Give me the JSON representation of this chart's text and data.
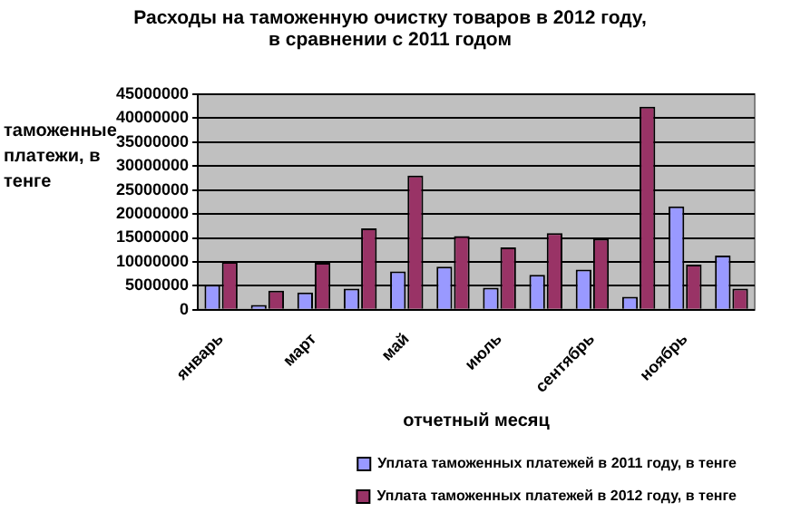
{
  "chart_data": {
    "type": "bar",
    "title": "Расходы на таможенную очистку товаров в  2012 году, в сравнении с  2011 годом",
    "xlabel": "отчетный месяц",
    "ylabel": "таможенные платежи, в тенге",
    "categories": [
      "январь",
      null,
      "март",
      null,
      "май",
      null,
      "июль",
      null,
      "сентябрь",
      null,
      "ноябрь",
      null
    ],
    "series": [
      {
        "name": "Уплата таможенных платежей в 2011 году, в тенге",
        "color": "#9999ff",
        "values": [
          5200000,
          1000000,
          3600000,
          4400000,
          8000000,
          9000000,
          4600000,
          7300000,
          8400000,
          2700000,
          21600000,
          11300000
        ]
      },
      {
        "name": "Уплата таможенных платежей в 2012 году, в тенге",
        "color": "#993366",
        "values": [
          10000000,
          4000000,
          9800000,
          17000000,
          28000000,
          15400000,
          13000000,
          16000000,
          14800000,
          42400000,
          9400000,
          4400000
        ]
      }
    ],
    "ylim": [
      0,
      45000000
    ],
    "yticks": [
      0,
      5000000,
      10000000,
      15000000,
      20000000,
      25000000,
      30000000,
      35000000,
      40000000,
      45000000
    ],
    "grid": "y",
    "legend": "bottom right"
  }
}
